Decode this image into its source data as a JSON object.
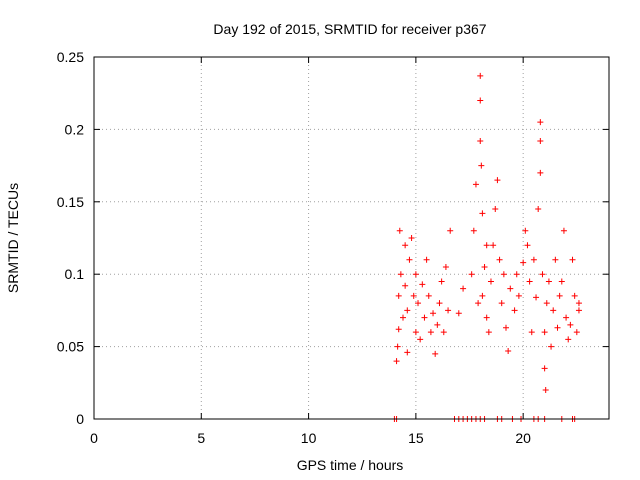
{
  "chart_data": {
    "type": "scatter",
    "title": "Day 192 of 2015, SRMTID for receiver p367",
    "xlabel": "GPS time / hours",
    "ylabel": "SRMTID / TECUs",
    "xlim": [
      0,
      24
    ],
    "ylim": [
      0,
      0.25
    ],
    "x_ticks": [
      0,
      5,
      10,
      15,
      20
    ],
    "y_ticks": [
      0,
      0.05,
      0.1,
      0.15,
      0.2,
      0.25
    ],
    "x_tick_labels": [
      "0",
      "5",
      "10",
      "15",
      "20"
    ],
    "y_tick_labels": [
      "0",
      "0.05",
      "0.1",
      "0.15",
      "0.2",
      "0.25"
    ],
    "grid": true,
    "marker": "+",
    "series": [
      {
        "name": "SRMTID",
        "color": "#ff0000",
        "points": [
          [
            14.0,
            0.0
          ],
          [
            14.1,
            0.0
          ],
          [
            16.8,
            0.0
          ],
          [
            17.0,
            0.0
          ],
          [
            17.2,
            0.0
          ],
          [
            17.4,
            0.0
          ],
          [
            17.6,
            0.0
          ],
          [
            17.8,
            0.0
          ],
          [
            18.0,
            0.0
          ],
          [
            18.2,
            0.0
          ],
          [
            18.8,
            0.0
          ],
          [
            19.0,
            0.0
          ],
          [
            19.5,
            0.0
          ],
          [
            19.9,
            0.0
          ],
          [
            20.5,
            0.0
          ],
          [
            20.7,
            0.0
          ],
          [
            21.0,
            0.0
          ],
          [
            21.8,
            0.0
          ],
          [
            22.3,
            0.0
          ],
          [
            22.4,
            0.0
          ],
          [
            14.1,
            0.04
          ],
          [
            14.15,
            0.05
          ],
          [
            14.2,
            0.062
          ],
          [
            14.2,
            0.085
          ],
          [
            14.25,
            0.13
          ],
          [
            14.3,
            0.1
          ],
          [
            14.4,
            0.07
          ],
          [
            14.5,
            0.092
          ],
          [
            14.5,
            0.12
          ],
          [
            14.6,
            0.075
          ],
          [
            14.7,
            0.11
          ],
          [
            14.8,
            0.125
          ],
          [
            14.9,
            0.085
          ],
          [
            14.6,
            0.046
          ],
          [
            15.0,
            0.06
          ],
          [
            15.0,
            0.1
          ],
          [
            15.1,
            0.08
          ],
          [
            15.2,
            0.055
          ],
          [
            15.3,
            0.093
          ],
          [
            15.4,
            0.07
          ],
          [
            15.5,
            0.11
          ],
          [
            15.6,
            0.085
          ],
          [
            15.7,
            0.06
          ],
          [
            15.8,
            0.073
          ],
          [
            15.9,
            0.045
          ],
          [
            16.0,
            0.065
          ],
          [
            16.1,
            0.08
          ],
          [
            16.2,
            0.095
          ],
          [
            16.3,
            0.06
          ],
          [
            16.4,
            0.105
          ],
          [
            16.5,
            0.075
          ],
          [
            16.6,
            0.13
          ],
          [
            17.0,
            0.073
          ],
          [
            17.2,
            0.09
          ],
          [
            17.6,
            0.1
          ],
          [
            17.7,
            0.13
          ],
          [
            17.8,
            0.162
          ],
          [
            17.9,
            0.08
          ],
          [
            18.0,
            0.237
          ],
          [
            18.0,
            0.22
          ],
          [
            18.0,
            0.192
          ],
          [
            18.05,
            0.175
          ],
          [
            18.1,
            0.142
          ],
          [
            18.1,
            0.085
          ],
          [
            18.2,
            0.105
          ],
          [
            18.3,
            0.12
          ],
          [
            18.3,
            0.07
          ],
          [
            18.4,
            0.06
          ],
          [
            18.5,
            0.095
          ],
          [
            18.6,
            0.12
          ],
          [
            18.7,
            0.145
          ],
          [
            18.8,
            0.165
          ],
          [
            18.9,
            0.11
          ],
          [
            19.0,
            0.08
          ],
          [
            19.1,
            0.1
          ],
          [
            19.2,
            0.063
          ],
          [
            19.3,
            0.047
          ],
          [
            19.4,
            0.09
          ],
          [
            19.6,
            0.075
          ],
          [
            19.7,
            0.1
          ],
          [
            19.8,
            0.085
          ],
          [
            20.0,
            0.108
          ],
          [
            20.1,
            0.13
          ],
          [
            20.2,
            0.12
          ],
          [
            20.3,
            0.095
          ],
          [
            20.4,
            0.06
          ],
          [
            20.5,
            0.11
          ],
          [
            20.6,
            0.084
          ],
          [
            20.7,
            0.145
          ],
          [
            20.8,
            0.205
          ],
          [
            20.8,
            0.192
          ],
          [
            20.8,
            0.17
          ],
          [
            20.9,
            0.1
          ],
          [
            21.0,
            0.06
          ],
          [
            21.0,
            0.035
          ],
          [
            21.05,
            0.02
          ],
          [
            21.1,
            0.08
          ],
          [
            21.2,
            0.095
          ],
          [
            21.3,
            0.05
          ],
          [
            21.4,
            0.075
          ],
          [
            21.5,
            0.11
          ],
          [
            21.6,
            0.063
          ],
          [
            21.7,
            0.085
          ],
          [
            21.8,
            0.095
          ],
          [
            21.9,
            0.13
          ],
          [
            22.0,
            0.07
          ],
          [
            22.1,
            0.055
          ],
          [
            22.2,
            0.065
          ],
          [
            22.3,
            0.11
          ],
          [
            22.4,
            0.085
          ],
          [
            22.5,
            0.06
          ],
          [
            22.6,
            0.075
          ],
          [
            22.6,
            0.08
          ]
        ]
      }
    ]
  }
}
